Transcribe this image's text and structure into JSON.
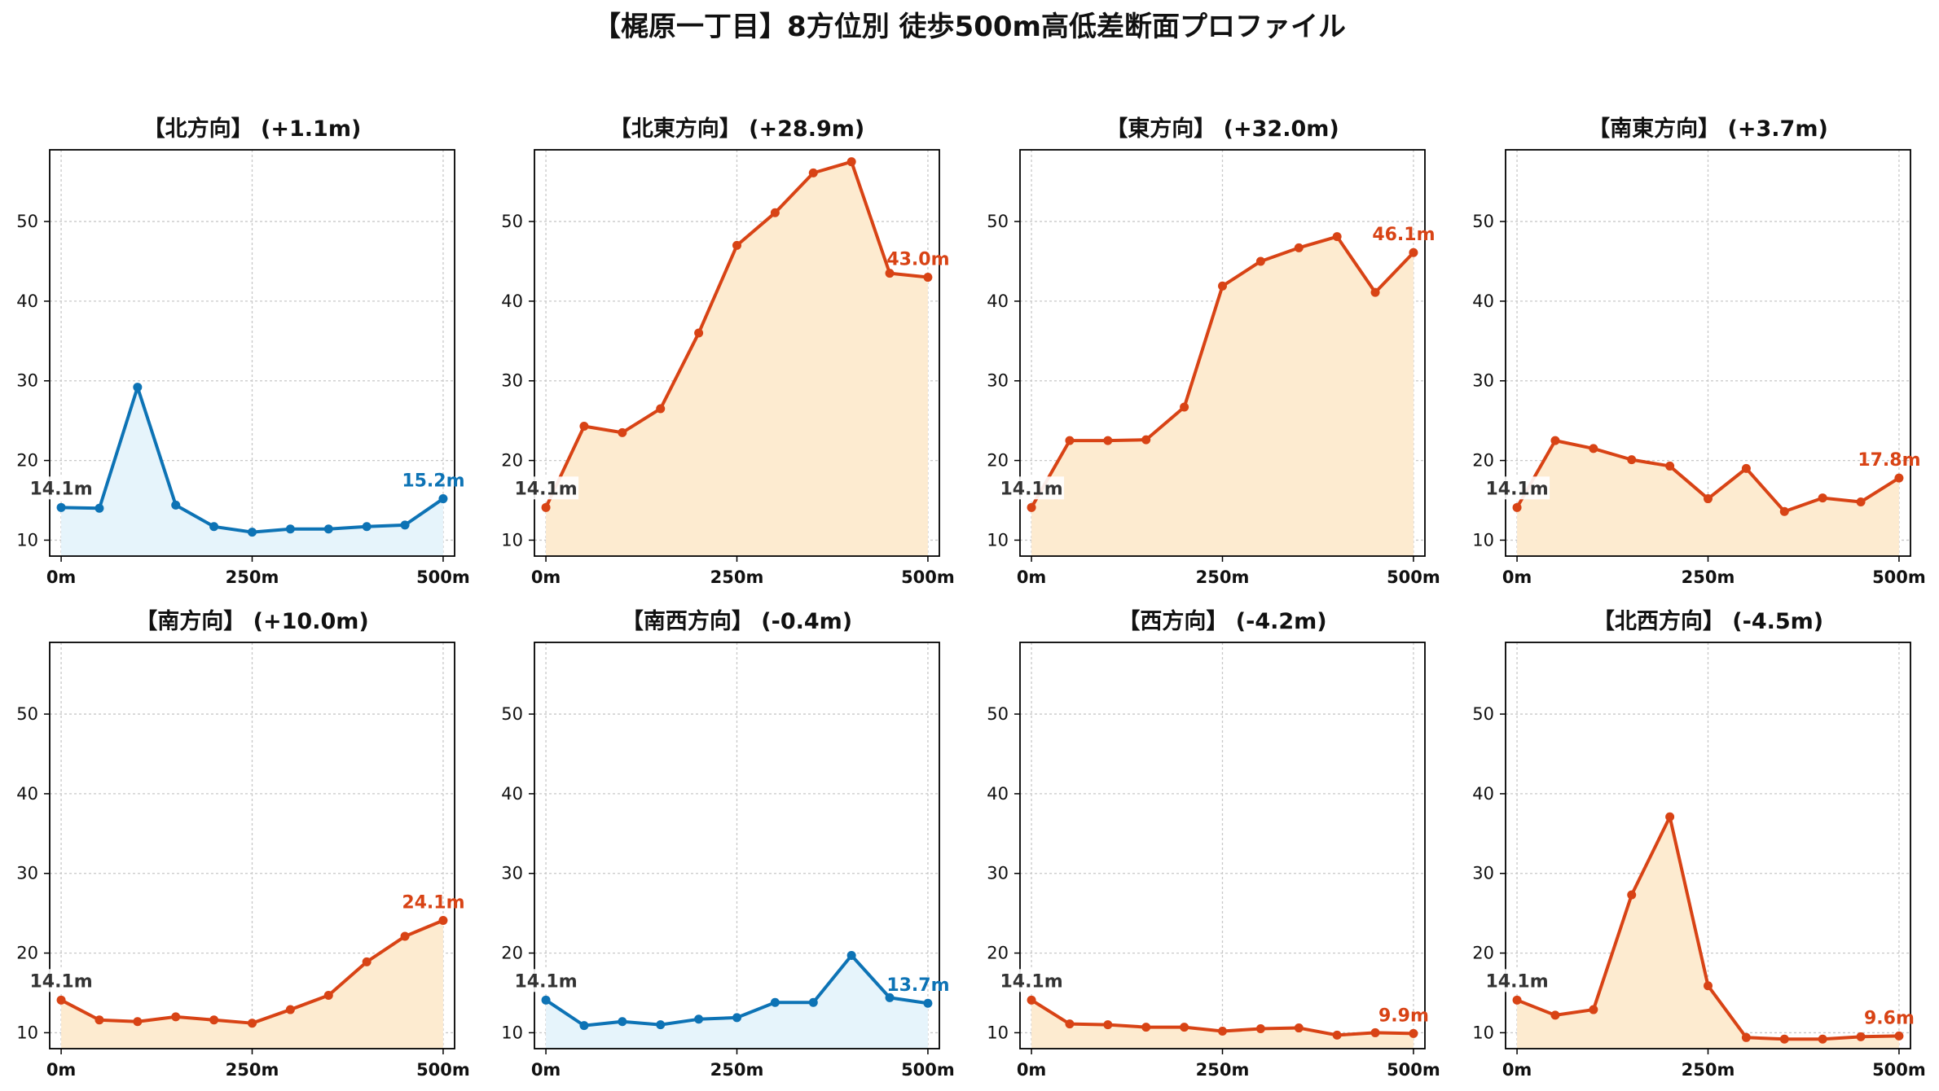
{
  "title": "【梶原一丁目】8方位別 徒歩500m高低差断面プロファイル",
  "colors": {
    "up": "#d84315",
    "up_fill": "#fdebd0",
    "down": "#0d73b5",
    "down_fill": "#e6f4fb",
    "start_label": "#333333",
    "grid": "#c8c8c8",
    "axis": "#000000"
  },
  "chart_data": [
    {
      "type": "area",
      "title": "【北方向】 (+1.1m)",
      "trend": "down",
      "x": [
        0,
        50,
        100,
        150,
        200,
        250,
        300,
        350,
        400,
        450,
        500
      ],
      "y": [
        14.1,
        14.0,
        29.2,
        14.4,
        11.7,
        11.0,
        11.4,
        11.4,
        11.7,
        11.9,
        15.2
      ],
      "start_label": "14.1m",
      "end_label": "15.2m",
      "xticks": [
        "0m",
        "250m",
        "500m"
      ],
      "yticks": [
        10,
        20,
        30,
        40,
        50
      ],
      "xlim": [
        -15,
        515
      ],
      "ylim": [
        8,
        59
      ]
    },
    {
      "type": "area",
      "title": "【北東方向】 (+28.9m)",
      "trend": "up",
      "x": [
        0,
        50,
        100,
        150,
        200,
        250,
        300,
        350,
        400,
        450,
        500
      ],
      "y": [
        14.1,
        24.3,
        23.5,
        26.5,
        36.0,
        47.0,
        51.1,
        56.1,
        57.5,
        43.5,
        43.0
      ],
      "start_label": "14.1m",
      "end_label": "43.0m",
      "xticks": [
        "0m",
        "250m",
        "500m"
      ],
      "yticks": [
        10,
        20,
        30,
        40,
        50
      ],
      "xlim": [
        -15,
        515
      ],
      "ylim": [
        8,
        59
      ]
    },
    {
      "type": "area",
      "title": "【東方向】 (+32.0m)",
      "trend": "up",
      "x": [
        0,
        50,
        100,
        150,
        200,
        250,
        300,
        350,
        400,
        450,
        500
      ],
      "y": [
        14.1,
        22.5,
        22.5,
        22.6,
        26.7,
        41.9,
        45.0,
        46.7,
        48.1,
        41.1,
        46.1
      ],
      "start_label": "14.1m",
      "end_label": "46.1m",
      "xticks": [
        "0m",
        "250m",
        "500m"
      ],
      "yticks": [
        10,
        20,
        30,
        40,
        50
      ],
      "xlim": [
        -15,
        515
      ],
      "ylim": [
        8,
        59
      ]
    },
    {
      "type": "area",
      "title": "【南東方向】 (+3.7m)",
      "trend": "up",
      "x": [
        0,
        50,
        100,
        150,
        200,
        250,
        300,
        350,
        400,
        450,
        500
      ],
      "y": [
        14.1,
        22.5,
        21.5,
        20.1,
        19.3,
        15.2,
        19.0,
        13.6,
        15.3,
        14.8,
        17.8
      ],
      "start_label": "14.1m",
      "end_label": "17.8m",
      "xticks": [
        "0m",
        "250m",
        "500m"
      ],
      "yticks": [
        10,
        20,
        30,
        40,
        50
      ],
      "xlim": [
        -15,
        515
      ],
      "ylim": [
        8,
        59
      ]
    },
    {
      "type": "area",
      "title": "【南方向】 (+10.0m)",
      "trend": "up",
      "x": [
        0,
        50,
        100,
        150,
        200,
        250,
        300,
        350,
        400,
        450,
        500
      ],
      "y": [
        14.1,
        11.6,
        11.4,
        12.0,
        11.6,
        11.2,
        12.9,
        14.7,
        18.9,
        22.1,
        24.1
      ],
      "start_label": "14.1m",
      "end_label": "24.1m",
      "xticks": [
        "0m",
        "250m",
        "500m"
      ],
      "yticks": [
        10,
        20,
        30,
        40,
        50
      ],
      "xlim": [
        -15,
        515
      ],
      "ylim": [
        8,
        59
      ]
    },
    {
      "type": "area",
      "title": "【南西方向】 (-0.4m)",
      "trend": "down",
      "x": [
        0,
        50,
        100,
        150,
        200,
        250,
        300,
        350,
        400,
        450,
        500
      ],
      "y": [
        14.1,
        10.9,
        11.4,
        11.0,
        11.7,
        11.9,
        13.8,
        13.8,
        19.7,
        14.4,
        13.7
      ],
      "start_label": "14.1m",
      "end_label": "13.7m",
      "xticks": [
        "0m",
        "250m",
        "500m"
      ],
      "yticks": [
        10,
        20,
        30,
        40,
        50
      ],
      "xlim": [
        -15,
        515
      ],
      "ylim": [
        8,
        59
      ]
    },
    {
      "type": "area",
      "title": "【西方向】 (-4.2m)",
      "trend": "up",
      "x": [
        0,
        50,
        100,
        150,
        200,
        250,
        300,
        350,
        400,
        450,
        500
      ],
      "y": [
        14.1,
        11.1,
        11.0,
        10.7,
        10.7,
        10.2,
        10.5,
        10.6,
        9.7,
        10.0,
        9.9
      ],
      "start_label": "14.1m",
      "end_label": "9.9m",
      "xticks": [
        "0m",
        "250m",
        "500m"
      ],
      "yticks": [
        10,
        20,
        30,
        40,
        50
      ],
      "xlim": [
        -15,
        515
      ],
      "ylim": [
        8,
        59
      ]
    },
    {
      "type": "area",
      "title": "【北西方向】 (-4.5m)",
      "trend": "up",
      "x": [
        0,
        50,
        100,
        150,
        200,
        250,
        300,
        350,
        400,
        450,
        500
      ],
      "y": [
        14.1,
        12.2,
        12.9,
        27.3,
        37.1,
        15.9,
        9.4,
        9.2,
        9.2,
        9.5,
        9.6
      ],
      "start_label": "14.1m",
      "end_label": "9.6m",
      "xticks": [
        "0m",
        "250m",
        "500m"
      ],
      "yticks": [
        10,
        20,
        30,
        40,
        50
      ],
      "xlim": [
        -15,
        515
      ],
      "ylim": [
        8,
        59
      ]
    }
  ]
}
